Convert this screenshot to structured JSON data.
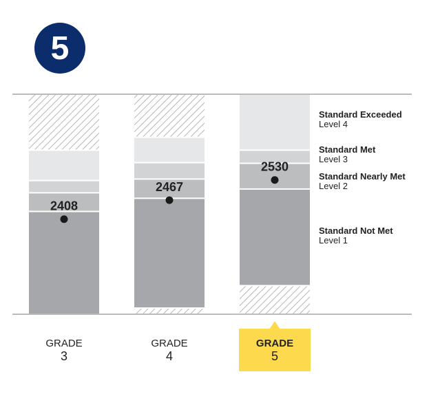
{
  "badge": {
    "label": "5",
    "color": "#0b2d6b"
  },
  "colors": {
    "level4": "#e6e7e8",
    "level3": "#d2d3d4",
    "level2": "#bcbdbf",
    "level1": "#a6a7aa",
    "baseline": "#bbbbbb",
    "highlight": "#fdd94e",
    "hatch": "#b5b6b8"
  },
  "chart_data": {
    "type": "bar",
    "categories": [
      "GRADE 3",
      "GRADE 4",
      "GRADE 5"
    ],
    "selected_category": "GRADE 5",
    "y_range": [
      2114,
      2795
    ],
    "levels": [
      {
        "name": "Standard Exceeded",
        "sublabel": "Level 4"
      },
      {
        "name": "Standard Met",
        "sublabel": "Level 3"
      },
      {
        "name": "Standard Nearly Met",
        "sublabel": "Level 2"
      },
      {
        "name": "Standard Not Met",
        "sublabel": "Level 1"
      }
    ],
    "grades": [
      {
        "word": "GRADE",
        "number": "3",
        "scale_min": 2114,
        "scale_max": 2623,
        "thresholds": [
          2432,
          2490,
          2528
        ],
        "score": 2408,
        "score_label": "2408"
      },
      {
        "word": "GRADE",
        "number": "4",
        "scale_min": 2131,
        "scale_max": 2663,
        "thresholds": [
          2473,
          2533,
          2584
        ],
        "score": 2467,
        "score_label": "2467"
      },
      {
        "word": "GRADE",
        "number": "5",
        "scale_min": 2201,
        "scale_max": 2795,
        "thresholds": [
          2502,
          2582,
          2623
        ],
        "score": 2530,
        "score_label": "2530"
      }
    ]
  }
}
